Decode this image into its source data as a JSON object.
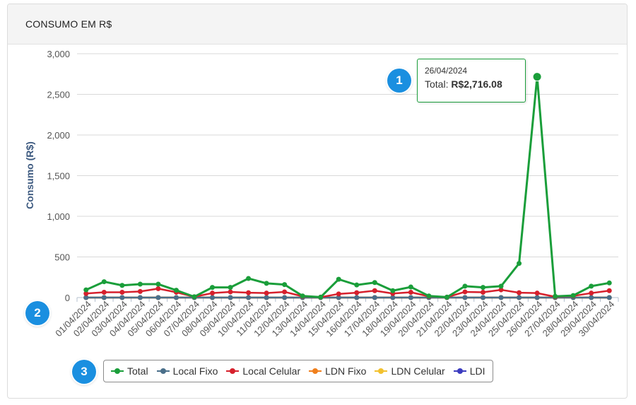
{
  "panel": {
    "title": "CONSUMO EM R$"
  },
  "tooltip": {
    "date": "26/04/2024",
    "series_label": "Total:",
    "value": "R$2,716.08"
  },
  "badges": [
    "1",
    "2",
    "3"
  ],
  "chart_data": {
    "type": "line",
    "ylabel": "Consumo (R$)",
    "xlabel": "",
    "ylim": [
      0,
      3000
    ],
    "yticks": [
      0,
      500,
      1000,
      1500,
      2000,
      2500,
      3000
    ],
    "ytick_labels": [
      "0",
      "500",
      "1,000",
      "1,500",
      "2,000",
      "2,500",
      "3,000"
    ],
    "grid": true,
    "legend_position": "bottom-center",
    "categories": [
      "01/04/2024",
      "02/04/2024",
      "03/04/2024",
      "04/04/2024",
      "05/04/2024",
      "06/04/2024",
      "07/04/2024",
      "08/04/2024",
      "09/04/2024",
      "10/04/2024",
      "11/04/2024",
      "12/04/2024",
      "13/04/2024",
      "14/04/2024",
      "15/04/2024",
      "16/04/2024",
      "17/04/2024",
      "18/04/2024",
      "19/04/2024",
      "20/04/2024",
      "21/04/2024",
      "22/04/2024",
      "23/04/2024",
      "24/04/2024",
      "25/04/2024",
      "26/04/2024",
      "27/04/2024",
      "28/04/2024",
      "29/04/2024",
      "30/04/2024"
    ],
    "series": [
      {
        "name": "Total",
        "color": "#1a9e3a",
        "values": [
          95,
          195,
          150,
          165,
          165,
          90,
          10,
          125,
          125,
          235,
          175,
          160,
          20,
          5,
          225,
          155,
          185,
          85,
          130,
          20,
          5,
          140,
          125,
          140,
          420,
          2716.08,
          15,
          25,
          140,
          180
        ]
      },
      {
        "name": "Local Fixo",
        "color": "#4a6f8a",
        "values": [
          0,
          0,
          0,
          0,
          0,
          0,
          0,
          0,
          0,
          0,
          0,
          0,
          0,
          0,
          0,
          0,
          0,
          0,
          0,
          0,
          0,
          0,
          0,
          0,
          0,
          0,
          0,
          0,
          0,
          0
        ]
      },
      {
        "name": "Local Celular",
        "color": "#d6202c",
        "values": [
          50,
          65,
          65,
          75,
          110,
          65,
          10,
          55,
          70,
          60,
          55,
          70,
          15,
          5,
          45,
          60,
          85,
          50,
          65,
          15,
          5,
          70,
          65,
          95,
          60,
          55,
          10,
          20,
          55,
          85
        ]
      },
      {
        "name": "LDN Fixo",
        "color": "#f07f1c",
        "values": [
          0,
          0,
          0,
          0,
          0,
          0,
          0,
          0,
          0,
          0,
          0,
          0,
          0,
          0,
          0,
          0,
          0,
          0,
          0,
          0,
          0,
          0,
          0,
          0,
          0,
          0,
          0,
          0,
          0,
          0
        ]
      },
      {
        "name": "LDN Celular",
        "color": "#f2c12e",
        "values": [
          0,
          0,
          0,
          0,
          0,
          0,
          0,
          0,
          0,
          0,
          0,
          0,
          0,
          0,
          0,
          0,
          0,
          0,
          0,
          0,
          0,
          0,
          0,
          0,
          0,
          0,
          0,
          0,
          0,
          0
        ]
      },
      {
        "name": "LDI",
        "color": "#3b3bbf",
        "values": [
          0,
          0,
          0,
          0,
          0,
          0,
          0,
          0,
          0,
          0,
          0,
          0,
          0,
          0,
          0,
          0,
          0,
          0,
          0,
          0,
          0,
          0,
          0,
          0,
          0,
          0,
          0,
          0,
          0,
          0
        ]
      }
    ]
  }
}
